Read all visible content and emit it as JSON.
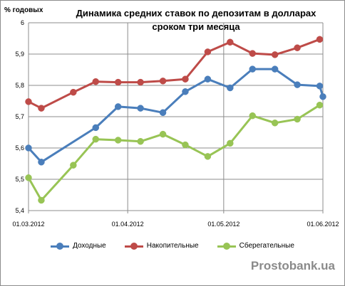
{
  "chart_data": {
    "type": "line",
    "title_line1": "Динамика средних ставок по депозитам в долларах",
    "title_line2": "сроком три месяца",
    "ylabel": "% годовых",
    "ylim": [
      5.4,
      6.0
    ],
    "yticks": [
      "5,4",
      "5,5",
      "5,6",
      "5,7",
      "5,8",
      "5,9",
      "6"
    ],
    "xticks": [
      "01.03.2012",
      "01.04.2012",
      "01.05.2012",
      "01.06.2012"
    ],
    "xlim": [
      "2012-03-01",
      "2012-06-01"
    ],
    "grid": true,
    "legend_position": "bottom",
    "x": [
      "2012-03-01",
      "2012-03-05",
      "2012-03-15",
      "2012-03-22",
      "2012-03-29",
      "2012-04-05",
      "2012-04-12",
      "2012-04-19",
      "2012-04-26",
      "2012-04-29",
      "2012-05-03",
      "2012-05-10",
      "2012-05-17",
      "2012-05-24",
      "2012-05-31",
      "2012-06-01"
    ],
    "series": [
      {
        "name": "Доходные",
        "color": "#4a7ebb",
        "values": [
          5.6,
          5.555,
          null,
          5.665,
          5.732,
          5.727,
          5.713,
          5.78,
          5.82,
          null,
          5.792,
          5.852,
          5.852,
          5.802,
          5.798,
          5.764
        ]
      },
      {
        "name": "Накопительные",
        "color": "#be4b48",
        "values": [
          5.748,
          5.727,
          5.778,
          5.812,
          5.81,
          5.81,
          5.814,
          5.82,
          5.907,
          null,
          5.938,
          5.902,
          5.898,
          5.92,
          5.947,
          null
        ]
      },
      {
        "name": "Сберегательные",
        "color": "#98c455",
        "values": [
          5.505,
          5.433,
          5.545,
          5.628,
          5.625,
          5.621,
          5.644,
          5.61,
          5.573,
          null,
          5.615,
          5.703,
          5.68,
          5.692,
          5.737,
          null
        ]
      }
    ]
  },
  "legend": {
    "items": [
      {
        "name": "Доходные",
        "color": "#4a7ebb"
      },
      {
        "name": "Накопительные",
        "color": "#be4b48"
      },
      {
        "name": "Сберегательные",
        "color": "#98c455"
      }
    ]
  },
  "watermark": "Prostobank.ua"
}
